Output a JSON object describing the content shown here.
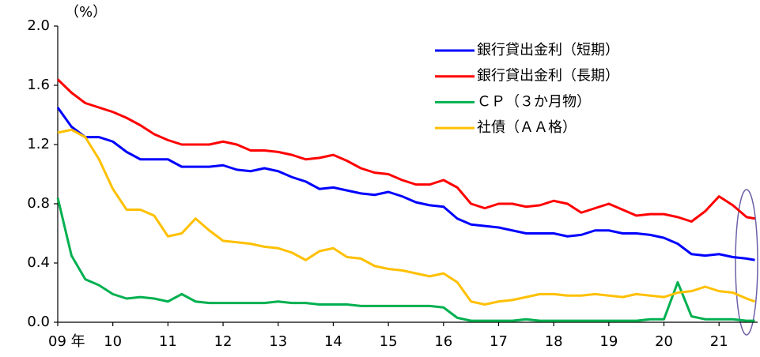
{
  "chart_data": {
    "type": "line",
    "y_unit_label": "（%）",
    "x": [
      2009,
      2009.25,
      2009.5,
      2009.75,
      2010,
      2010.25,
      2010.5,
      2010.75,
      2011,
      2011.25,
      2011.5,
      2011.75,
      2012,
      2012.25,
      2012.5,
      2012.75,
      2013,
      2013.25,
      2013.5,
      2013.75,
      2014,
      2014.25,
      2014.5,
      2014.75,
      2015,
      2015.25,
      2015.5,
      2015.75,
      2016,
      2016.25,
      2016.5,
      2016.75,
      2017,
      2017.25,
      2017.5,
      2017.75,
      2018,
      2018.25,
      2018.5,
      2018.75,
      2019,
      2019.25,
      2019.5,
      2019.75,
      2020,
      2020.25,
      2020.5,
      2020.75,
      2021,
      2021.25,
      2021.5,
      2021.65
    ],
    "series": [
      {
        "name": "銀行貸出金利（短期）",
        "color": "#0000ff",
        "values": [
          1.45,
          1.32,
          1.25,
          1.25,
          1.22,
          1.15,
          1.1,
          1.1,
          1.1,
          1.05,
          1.05,
          1.05,
          1.06,
          1.03,
          1.02,
          1.04,
          1.02,
          0.98,
          0.95,
          0.9,
          0.91,
          0.89,
          0.87,
          0.86,
          0.88,
          0.85,
          0.81,
          0.79,
          0.78,
          0.7,
          0.66,
          0.65,
          0.64,
          0.62,
          0.6,
          0.6,
          0.6,
          0.58,
          0.59,
          0.62,
          0.62,
          0.6,
          0.6,
          0.59,
          0.57,
          0.53,
          0.46,
          0.45,
          0.46,
          0.44,
          0.43,
          0.42
        ]
      },
      {
        "name": "銀行貸出金利（長期）",
        "color": "#ff0000",
        "values": [
          1.64,
          1.55,
          1.48,
          1.45,
          1.42,
          1.38,
          1.33,
          1.27,
          1.23,
          1.2,
          1.2,
          1.2,
          1.22,
          1.2,
          1.16,
          1.16,
          1.15,
          1.13,
          1.1,
          1.11,
          1.13,
          1.09,
          1.04,
          1.01,
          1.0,
          0.96,
          0.93,
          0.93,
          0.96,
          0.91,
          0.8,
          0.77,
          0.8,
          0.8,
          0.78,
          0.79,
          0.82,
          0.8,
          0.74,
          0.77,
          0.8,
          0.76,
          0.72,
          0.73,
          0.73,
          0.71,
          0.68,
          0.75,
          0.85,
          0.79,
          0.71,
          0.7
        ]
      },
      {
        "name": "ＣＰ（３か月物）",
        "color": "#00b050",
        "values": [
          0.84,
          0.45,
          0.29,
          0.25,
          0.19,
          0.16,
          0.17,
          0.16,
          0.14,
          0.19,
          0.14,
          0.13,
          0.13,
          0.13,
          0.13,
          0.13,
          0.14,
          0.13,
          0.13,
          0.12,
          0.12,
          0.12,
          0.11,
          0.11,
          0.11,
          0.11,
          0.11,
          0.11,
          0.1,
          0.03,
          0.01,
          0.01,
          0.01,
          0.01,
          0.02,
          0.01,
          0.01,
          0.01,
          0.01,
          0.01,
          0.01,
          0.01,
          0.01,
          0.02,
          0.02,
          0.27,
          0.04,
          0.02,
          0.02,
          0.02,
          0.01,
          0.01
        ]
      },
      {
        "name": "社債（ＡＡ格）",
        "color": "#ffc000",
        "values": [
          1.28,
          1.3,
          1.25,
          1.1,
          0.9,
          0.76,
          0.76,
          0.72,
          0.58,
          0.6,
          0.7,
          0.62,
          0.55,
          0.54,
          0.53,
          0.51,
          0.5,
          0.47,
          0.42,
          0.48,
          0.5,
          0.44,
          0.43,
          0.38,
          0.36,
          0.35,
          0.33,
          0.31,
          0.33,
          0.27,
          0.14,
          0.12,
          0.14,
          0.15,
          0.17,
          0.19,
          0.19,
          0.18,
          0.18,
          0.19,
          0.18,
          0.17,
          0.19,
          0.18,
          0.17,
          0.2,
          0.21,
          0.24,
          0.21,
          0.2,
          0.16,
          0.14
        ]
      }
    ],
    "xlim": [
      2009,
      2021.7
    ],
    "xticks": [
      {
        "value": 2009,
        "label": "09 年"
      },
      {
        "value": 2010,
        "label": "10"
      },
      {
        "value": 2011,
        "label": "11"
      },
      {
        "value": 2012,
        "label": "12"
      },
      {
        "value": 2013,
        "label": "13"
      },
      {
        "value": 2014,
        "label": "14"
      },
      {
        "value": 2015,
        "label": "15"
      },
      {
        "value": 2016,
        "label": "16"
      },
      {
        "value": 2017,
        "label": "17"
      },
      {
        "value": 2018,
        "label": "18"
      },
      {
        "value": 2019,
        "label": "19"
      },
      {
        "value": 2020,
        "label": "20"
      },
      {
        "value": 2021,
        "label": "21"
      }
    ],
    "ylim": [
      0,
      2
    ],
    "yticks": [
      {
        "value": 0,
        "label": "0.0"
      },
      {
        "value": 0.4,
        "label": "0.4"
      },
      {
        "value": 0.8,
        "label": "0.8"
      },
      {
        "value": 1.2,
        "label": "1.2"
      },
      {
        "value": 1.6,
        "label": "1.6"
      },
      {
        "value": 2,
        "label": "2.0"
      }
    ],
    "legend": "top-right"
  }
}
